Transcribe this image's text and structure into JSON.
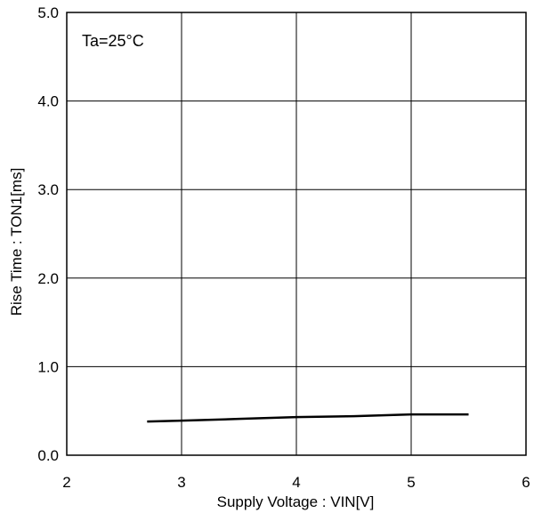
{
  "chart_data": {
    "type": "line",
    "title": "",
    "annotation": "Ta=25°C",
    "xlabel": "Supply Voltage : VIN[V]",
    "ylabel": "Rise Time : TON1[ms]",
    "xlim": [
      2,
      6
    ],
    "ylim": [
      0,
      5
    ],
    "x_ticks": [
      "2",
      "3",
      "4",
      "5",
      "6"
    ],
    "y_ticks": [
      "0.0",
      "1.0",
      "2.0",
      "3.0",
      "4.0",
      "5.0"
    ],
    "grid": true,
    "series": [
      {
        "x": [
          2.7,
          3.0,
          3.5,
          4.0,
          4.5,
          5.0,
          5.5
        ],
        "y": [
          0.38,
          0.39,
          0.41,
          0.43,
          0.44,
          0.46,
          0.46
        ],
        "color": "#000000"
      }
    ]
  }
}
